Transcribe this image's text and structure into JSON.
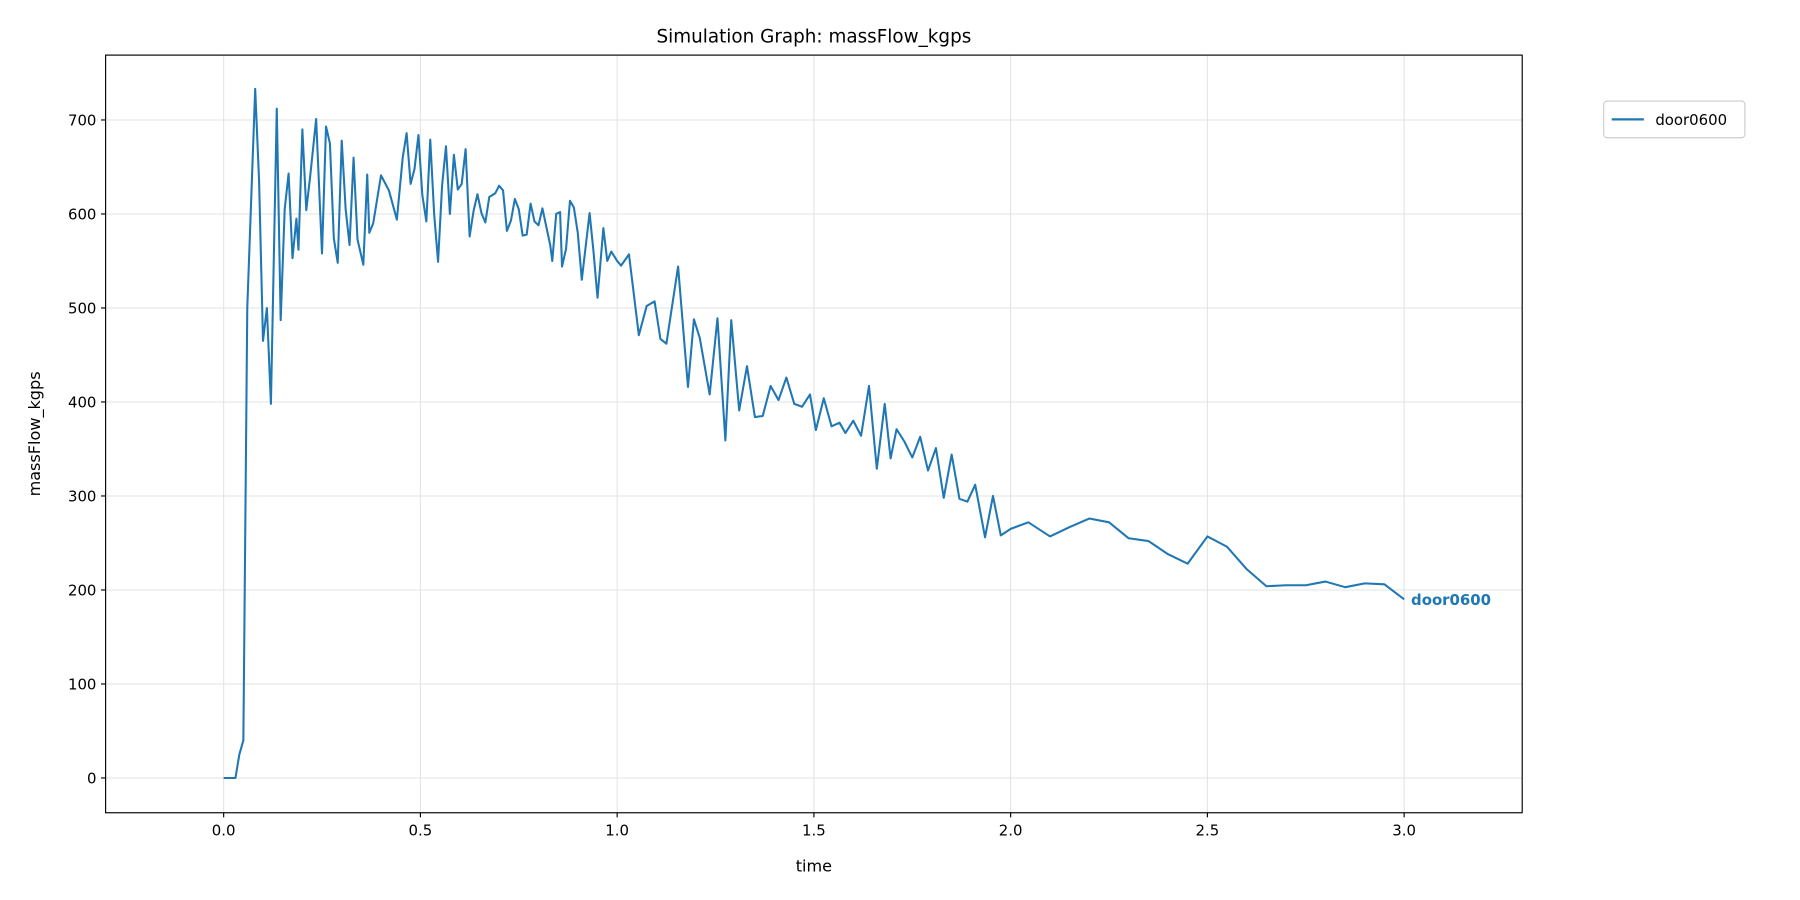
{
  "chart_data": {
    "type": "line",
    "title": "Simulation Graph: massFlow_kgps",
    "xlabel": "time",
    "ylabel": "massFlow_kgps",
    "xlim": [
      -0.3,
      3.3
    ],
    "ylim": [
      -37,
      769
    ],
    "xticks": [
      0.0,
      0.5,
      1.0,
      1.5,
      2.0,
      2.5,
      3.0
    ],
    "xtick_labels": [
      "0.0",
      "0.5",
      "1.0",
      "1.5",
      "2.0",
      "2.5",
      "3.0"
    ],
    "yticks": [
      0,
      100,
      200,
      300,
      400,
      500,
      600,
      700
    ],
    "ytick_labels": [
      "0",
      "100",
      "200",
      "300",
      "400",
      "500",
      "600",
      "700"
    ],
    "grid": true,
    "legend": {
      "placement": "outside top-right",
      "entries": [
        "door0600"
      ]
    },
    "series": [
      {
        "name": "door0600",
        "color": "#1f77b4",
        "end_label": "door0600",
        "x": [
          0.0,
          0.03,
          0.04,
          0.05,
          0.06,
          0.08,
          0.09,
          0.1,
          0.11,
          0.12,
          0.135,
          0.145,
          0.155,
          0.165,
          0.175,
          0.185,
          0.19,
          0.2,
          0.21,
          0.22,
          0.235,
          0.25,
          0.26,
          0.27,
          0.28,
          0.29,
          0.3,
          0.31,
          0.32,
          0.33,
          0.34,
          0.355,
          0.365,
          0.37,
          0.38,
          0.4,
          0.42,
          0.44,
          0.455,
          0.465,
          0.475,
          0.485,
          0.495,
          0.505,
          0.515,
          0.525,
          0.535,
          0.545,
          0.555,
          0.565,
          0.575,
          0.585,
          0.595,
          0.605,
          0.615,
          0.625,
          0.635,
          0.645,
          0.655,
          0.665,
          0.675,
          0.69,
          0.7,
          0.71,
          0.72,
          0.73,
          0.74,
          0.75,
          0.76,
          0.77,
          0.78,
          0.79,
          0.8,
          0.81,
          0.83,
          0.835,
          0.845,
          0.855,
          0.86,
          0.87,
          0.88,
          0.89,
          0.9,
          0.91,
          0.93,
          0.94,
          0.95,
          0.965,
          0.975,
          0.985,
          1.0,
          1.01,
          1.03,
          1.055,
          1.075,
          1.095,
          1.11,
          1.125,
          1.155,
          1.18,
          1.195,
          1.21,
          1.235,
          1.255,
          1.275,
          1.29,
          1.31,
          1.33,
          1.35,
          1.37,
          1.39,
          1.41,
          1.43,
          1.45,
          1.47,
          1.49,
          1.505,
          1.525,
          1.545,
          1.565,
          1.58,
          1.6,
          1.62,
          1.64,
          1.66,
          1.68,
          1.695,
          1.71,
          1.73,
          1.75,
          1.77,
          1.79,
          1.81,
          1.83,
          1.85,
          1.87,
          1.89,
          1.91,
          1.935,
          1.955,
          1.975,
          2.0,
          2.045,
          2.1,
          2.15,
          2.2,
          2.25,
          2.3,
          2.35,
          2.4,
          2.45,
          2.5,
          2.55,
          2.6,
          2.65,
          2.7,
          2.75,
          2.8,
          2.85,
          2.9,
          2.95,
          3.0
        ],
        "y": [
          0,
          0,
          25,
          40,
          500,
          733,
          635,
          465,
          500,
          398,
          712,
          487,
          605,
          643,
          553,
          595,
          562,
          690,
          604,
          640,
          701,
          558,
          693,
          675,
          574,
          548,
          678,
          605,
          567,
          660,
          573,
          546,
          642,
          580,
          590,
          641,
          625,
          594,
          660,
          686,
          632,
          648,
          684,
          620,
          592,
          679,
          600,
          549,
          630,
          672,
          600,
          663,
          626,
          632,
          669,
          576,
          603,
          621,
          601,
          591,
          618,
          622,
          630,
          625,
          582,
          593,
          616,
          605,
          577,
          578,
          611,
          592,
          588,
          606,
          567,
          550,
          600,
          602,
          544,
          563,
          614,
          607,
          580,
          530,
          601,
          560,
          511,
          585,
          550,
          560,
          550,
          545,
          557,
          471,
          502,
          507,
          467,
          462,
          544,
          416,
          488,
          468,
          408,
          489,
          359,
          487,
          391,
          438,
          384,
          385,
          417,
          402,
          426,
          398,
          395,
          408,
          370,
          404,
          374,
          378,
          367,
          380,
          364,
          417,
          329,
          398,
          340,
          371,
          358,
          341,
          363,
          327,
          351,
          298,
          344,
          297,
          294,
          312,
          256,
          300,
          258,
          265,
          272,
          257,
          267,
          276,
          272,
          255,
          252,
          238,
          228,
          257,
          246,
          222,
          204,
          205,
          205,
          209,
          203,
          207,
          206,
          190
        ]
      }
    ]
  }
}
